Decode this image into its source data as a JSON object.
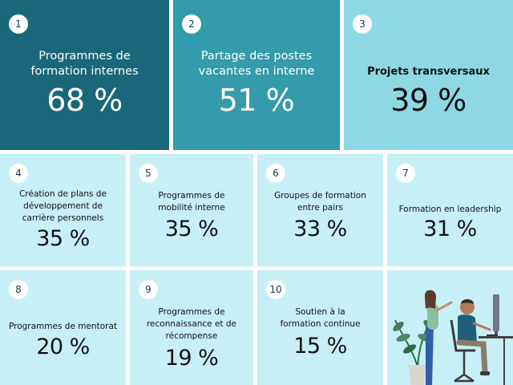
{
  "chart_data": {
    "type": "table",
    "items": [
      {
        "rank": "1",
        "label": "Programmes de\nformation internes",
        "value": 68,
        "display": "68 %"
      },
      {
        "rank": "2",
        "label": "Partage des postes\nvacantes en interne",
        "value": 51,
        "display": "51 %"
      },
      {
        "rank": "3",
        "label": "Projets transversaux",
        "value": 39,
        "display": "39 %"
      },
      {
        "rank": "4",
        "label": "Création de plans de\ndéveloppement de\ncarrière personnels",
        "value": 35,
        "display": "35 %"
      },
      {
        "rank": "5",
        "label": "Programmes de\nmobilité interne",
        "value": 35,
        "display": "35 %"
      },
      {
        "rank": "6",
        "label": "Groupes de formation\nentre pairs",
        "value": 33,
        "display": "33 %"
      },
      {
        "rank": "7",
        "label": "Formation en leadership",
        "value": 31,
        "display": "31 %"
      },
      {
        "rank": "8",
        "label": "Programmes de mentorat",
        "value": 20,
        "display": "20 %"
      },
      {
        "rank": "9",
        "label": "Programmes de\nreconnaissance et de\nrécompense",
        "value": 19,
        "display": "19 %"
      },
      {
        "rank": "10",
        "label": "Soutien à la\nformation continue",
        "value": 15,
        "display": "15 %"
      }
    ]
  },
  "colors": {
    "tile_1": "#19677a",
    "tile_2": "#339bab",
    "tile_3": "#8ed8e5",
    "tile_other": "#c7eff6",
    "badge": "#ffffff"
  },
  "illustration": {
    "icon": "people-at-computer-illustration"
  }
}
